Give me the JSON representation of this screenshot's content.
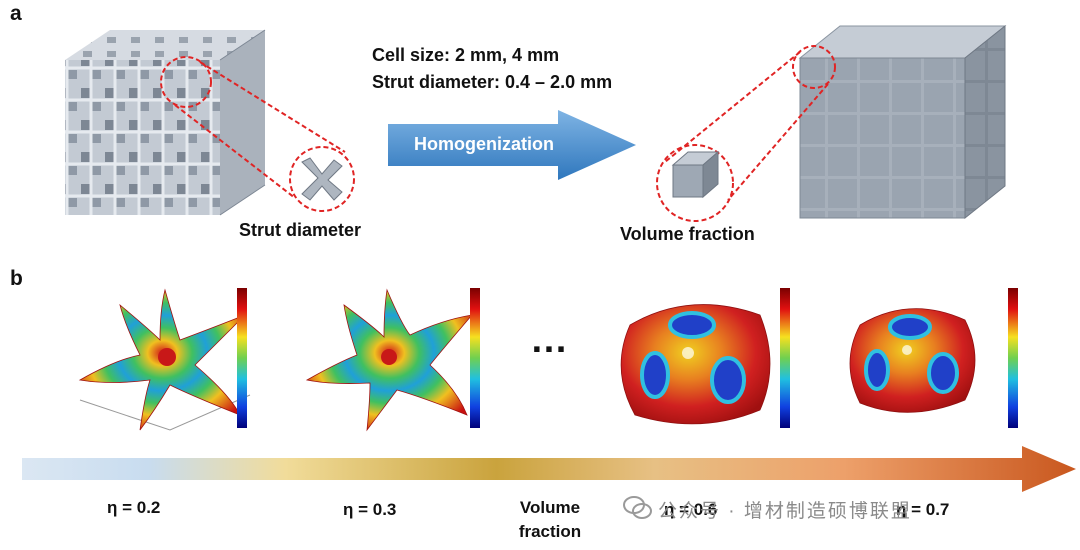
{
  "figure": {
    "panel_a": {
      "letter": "a",
      "cell_size": "Cell size: 2 mm, 4 mm",
      "strut_range": "Strut diameter:  0.4 – 2.0 mm",
      "arrow_label": "Homogenization",
      "left_caption": "Strut diameter",
      "right_caption": "Volume  fraction",
      "colors": {
        "lattice": "#b4bcc7",
        "cube": "#9ea8b4",
        "dashed": "#e02424",
        "arrow": "#3a86c9"
      }
    },
    "panel_b": {
      "letter": "b",
      "ellipsis": "…",
      "eta_labels": [
        "η = 0.2",
        "η = 0.3",
        "η = 0.6",
        "η = 0.7"
      ],
      "axis_word_line1": "Volume",
      "axis_word_line2": "fraction",
      "colors": {
        "gradient_start": "#dbe7f3",
        "gradient_mid": "#d4a83a",
        "gradient_end": "#c9571e"
      }
    },
    "watermark": "公众号 · 增材制造硕博联盟"
  }
}
